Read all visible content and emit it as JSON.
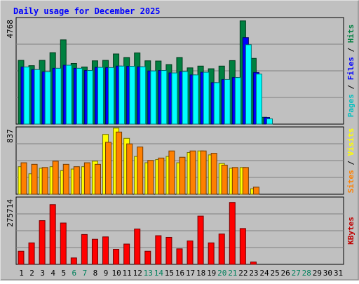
{
  "chart_data": {
    "type": "bar",
    "title": "Daily usage for December 2025",
    "x": [
      "1",
      "2",
      "3",
      "4",
      "5",
      "6",
      "7",
      "8",
      "9",
      "10",
      "11",
      "12",
      "13",
      "14",
      "15",
      "16",
      "17",
      "18",
      "19",
      "20",
      "21",
      "22",
      "23",
      "24",
      "25",
      "26",
      "27",
      "28",
      "29",
      "30",
      "31"
    ],
    "weekend_days": [
      "6",
      "7",
      "13",
      "14",
      "20",
      "21",
      "27",
      "28"
    ],
    "panels": [
      {
        "name": "requests",
        "ymax_label": "4768",
        "ymax": 4768,
        "series": [
          {
            "name": "Hits",
            "color": "#008040",
            "values": [
              2890,
              2650,
              2890,
              3240,
              3820,
              2750,
              2590,
              2870,
              2890,
              3180,
              3020,
              3230,
              2870,
              2860,
              2700,
              3020,
              2550,
              2630,
              2510,
              2630,
              2880,
              4680,
              2980,
              310,
              0,
              0,
              0,
              0,
              0,
              0,
              0
            ]
          },
          {
            "name": "Files",
            "color": "#0000ff",
            "values": [
              2590,
              2470,
              2370,
              2530,
              2670,
              2530,
              2430,
              2570,
              2560,
              2630,
              2620,
              2600,
              2410,
              2430,
              2320,
              2380,
              2230,
              2350,
              1880,
              2020,
              2110,
              3920,
              2340,
              300,
              0,
              0,
              0,
              0,
              0,
              0,
              0
            ]
          },
          {
            "name": "Pages",
            "color": "#00ffff",
            "values": [
              2590,
              2470,
              2370,
              2530,
              2670,
              2530,
              2430,
              2570,
              2560,
              2630,
              2620,
              2600,
              2410,
              2430,
              2320,
              2380,
              2230,
              2350,
              1880,
              2020,
              2110,
              3600,
              2270,
              240,
              0,
              0,
              0,
              0,
              0,
              0,
              0
            ]
          }
        ],
        "legend_colors": {
          "Pages": "#00c0c0",
          "Files": "#0000ff",
          "Hits": "#008040"
        }
      },
      {
        "name": "visitors",
        "ymax_label": "837",
        "ymax": 837,
        "series": [
          {
            "name": "Visits",
            "color": "#ffff00",
            "values": [
              350,
              260,
              330,
              350,
              300,
              320,
              350,
              420,
              760,
              840,
              710,
              480,
              400,
              440,
              480,
              400,
              530,
              550,
              500,
              390,
              330,
              340,
              70,
              0,
              0,
              0,
              0,
              0,
              0,
              0,
              0
            ]
          },
          {
            "name": "Sites",
            "color": "#ff8000",
            "values": [
              400,
              380,
              340,
              420,
              380,
              350,
              400,
              380,
              660,
              790,
              640,
              600,
              430,
              460,
              550,
              470,
              550,
              550,
              520,
              370,
              340,
              340,
              90,
              0,
              0,
              0,
              0,
              0,
              0,
              0,
              0
            ]
          }
        ],
        "legend_colors": {
          "Sites": "#ff8000",
          "Visits": "#ffff00"
        }
      },
      {
        "name": "volume",
        "ymax_label": "275714",
        "ymax": 275714,
        "series": [
          {
            "name": "KBytes",
            "color": "#ff0000",
            "values": [
              55000,
              90000,
              183000,
              250000,
              173000,
              27000,
              125000,
              105000,
              115000,
              63000,
              85000,
              148000,
              55000,
              120000,
              113000,
              65000,
              98000,
              202000,
              90000,
              127000,
              259000,
              150000,
              10000,
              0,
              0,
              0,
              0,
              0,
              0,
              0,
              0
            ]
          }
        ],
        "legend_colors": {
          "KBytes": "#c00000"
        }
      }
    ],
    "grid": true,
    "legend_placement": "right (vertical, per panel)"
  },
  "colors": {
    "background": "#c0c0c0",
    "frame": "#ffffff",
    "title": "#0000ff",
    "day_weekday": "#000000",
    "day_weekend": "#00805c"
  }
}
